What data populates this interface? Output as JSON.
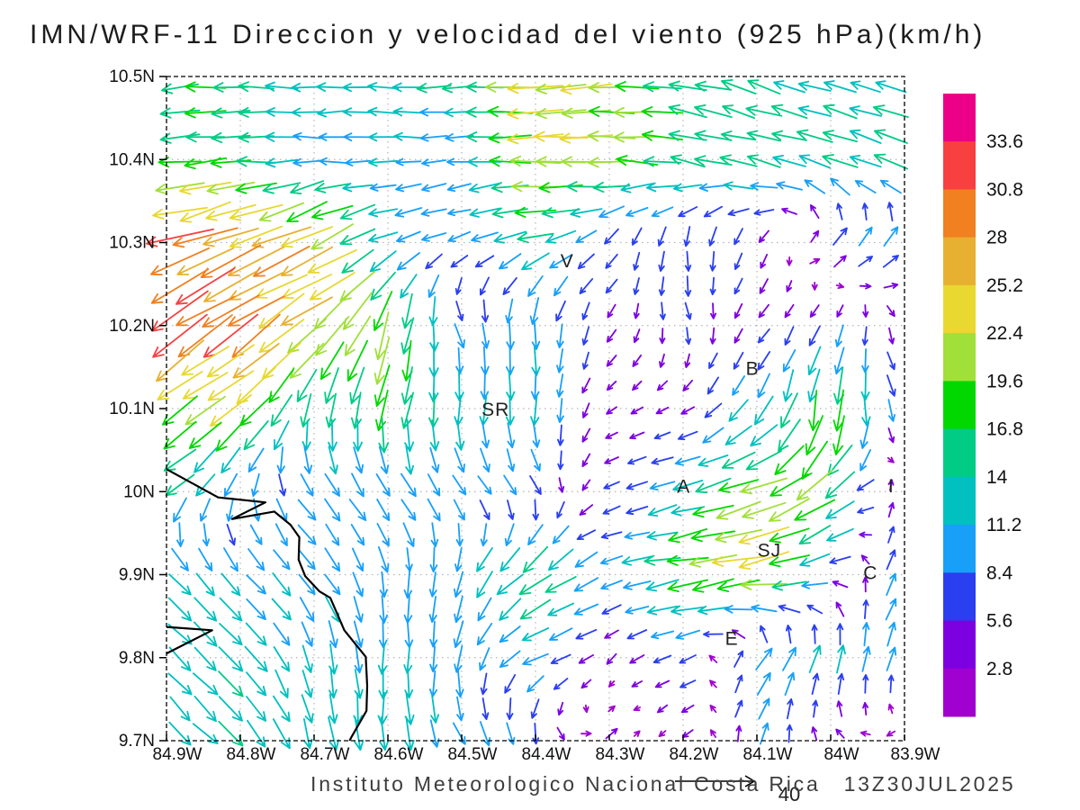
{
  "title": "IMN/WRF-11 Direccion y velocidad del viento (925 hPa)(km/h)",
  "footer": {
    "institution": "Instituto Meteorologico Nacional Costa Rica",
    "datetime": "13Z30JUL2025"
  },
  "reference_arrow": {
    "value": 40,
    "label": "40"
  },
  "chart_data": {
    "type": "vector_field",
    "title": "IMN/WRF-11 Direccion y velocidad del viento (925 hPa)(km/h)",
    "speed_units": "km/h",
    "pressure_level": "925 hPa",
    "grid": true,
    "x_axis": {
      "labels": [
        "84.9W",
        "84.8W",
        "84.7W",
        "84.6W",
        "84.5W",
        "84.4W",
        "84.3W",
        "84.2W",
        "84.1W",
        "84W",
        "83.9W"
      ],
      "ticks_deg_west": [
        84.9,
        84.8,
        84.7,
        84.6,
        84.5,
        84.4,
        84.3,
        84.2,
        84.1,
        84.0,
        83.9
      ]
    },
    "y_axis": {
      "labels": [
        "10.5N",
        "10.4N",
        "10.3N",
        "10.2N",
        "10.1N",
        "10N",
        "9.9N",
        "9.8N",
        "9.7N"
      ],
      "ticks_deg_north": [
        10.5,
        10.4,
        10.3,
        10.2,
        10.1,
        10.0,
        9.9,
        9.8,
        9.7
      ]
    },
    "colorbar": {
      "levels": [
        2.8,
        5.6,
        8.4,
        11.2,
        14,
        16.8,
        19.6,
        22.4,
        25.2,
        28,
        30.8,
        33.6
      ],
      "labels": [
        "33.6",
        "30.8",
        "28",
        "25.2",
        "22.4",
        "19.6",
        "16.8",
        "14",
        "11.2",
        "8.4",
        "5.6",
        "2.8"
      ],
      "colors_low_to_high": [
        "#a000d0",
        "#7d00e0",
        "#2a3ff0",
        "#18a0f8",
        "#00c0c0",
        "#00cc85",
        "#00d800",
        "#a0e038",
        "#e8d830",
        "#e8b030",
        "#f08020",
        "#f84040",
        "#ec0088"
      ]
    },
    "stations": [
      {
        "label": "V",
        "lon_w": 84.357,
        "lat_n": 10.278
      },
      {
        "label": "SR",
        "lon_w": 84.454,
        "lat_n": 10.099
      },
      {
        "label": "B",
        "lon_w": 84.106,
        "lat_n": 10.148
      },
      {
        "label": "A",
        "lon_w": 84.199,
        "lat_n": 10.006
      },
      {
        "label": "I",
        "lon_w": 83.918,
        "lat_n": 10.007
      },
      {
        "label": "SJ",
        "lon_w": 84.083,
        "lat_n": 9.929
      },
      {
        "label": "C",
        "lon_w": 83.946,
        "lat_n": 9.902
      },
      {
        "label": "E",
        "lon_w": 84.134,
        "lat_n": 9.823
      }
    ],
    "coastline": [
      [
        [
          84.9,
          10.027
        ],
        [
          84.83,
          9.993
        ],
        [
          84.766,
          9.987
        ],
        [
          84.811,
          9.967
        ],
        [
          84.754,
          9.976
        ],
        [
          84.732,
          9.96
        ],
        [
          84.72,
          9.945
        ],
        [
          84.721,
          9.918
        ],
        [
          84.712,
          9.898
        ],
        [
          84.693,
          9.88
        ],
        [
          84.678,
          9.872
        ],
        [
          84.659,
          9.833
        ],
        [
          84.63,
          9.801
        ],
        [
          84.628,
          9.766
        ],
        [
          84.629,
          9.736
        ],
        [
          84.649,
          9.705
        ],
        [
          84.652,
          9.7
        ]
      ],
      [
        [
          84.9,
          9.837
        ],
        [
          84.838,
          9.833
        ],
        [
          84.9,
          9.805
        ]
      ]
    ],
    "wind_grid": {
      "lons_deg_west": [
        84.9,
        84.8,
        84.7,
        84.6,
        84.5,
        84.4,
        84.3,
        84.2,
        84.1,
        84.0,
        83.9
      ],
      "lats_deg_north": [
        10.5,
        10.4,
        10.3,
        10.2,
        10.1,
        10.0,
        9.9,
        9.8,
        9.7
      ],
      "u_kmh": [
        [
          -17,
          -15,
          -13,
          -13,
          -14,
          -23,
          -20,
          -15,
          -14,
          -13,
          -13
        ],
        [
          -19,
          -17,
          -9,
          -11,
          -9,
          -24,
          -21,
          -16,
          -15,
          -14,
          -14
        ],
        [
          -30,
          -26,
          -24,
          -10,
          -8,
          -14,
          -4,
          0,
          -3,
          6,
          7
        ],
        [
          -26,
          -24,
          -20,
          -6,
          4,
          0,
          -3,
          2,
          -3,
          -4,
          3
        ],
        [
          -16,
          -17,
          -2,
          -3,
          -2,
          0,
          -3,
          -4,
          -7,
          -2,
          3
        ],
        [
          -11,
          -3,
          6,
          6,
          6,
          4,
          -5,
          -12,
          -20,
          -16,
          4
        ],
        [
          9,
          8,
          7,
          2,
          -4,
          -14,
          -9,
          -18,
          -23,
          -8,
          7
        ],
        [
          9,
          9,
          3,
          0,
          -2,
          -10,
          -3,
          -7,
          6,
          3,
          2
        ],
        [
          9,
          10,
          3,
          0,
          5,
          2,
          4,
          -3,
          2,
          -3,
          -2
        ]
      ],
      "v_kmh": [
        [
          -1,
          0,
          0,
          0,
          0,
          0,
          -1,
          3,
          4,
          4,
          4
        ],
        [
          -2,
          -1,
          0,
          0,
          -1,
          0,
          0,
          3,
          4,
          5,
          5
        ],
        [
          -8,
          -10,
          -12,
          -4,
          -3,
          -4,
          -5,
          -8,
          -6,
          6,
          7
        ],
        [
          -18,
          -17,
          -14,
          -20,
          -8,
          -11,
          -4,
          -6,
          -4,
          -6,
          -5
        ],
        [
          -12,
          -13,
          -14,
          -18,
          -13,
          -12,
          -2,
          -2,
          -11,
          -20,
          -6
        ],
        [
          -9,
          -8,
          -8,
          -8,
          -7,
          -6,
          -2,
          -3,
          -6,
          -14,
          8
        ],
        [
          -9,
          -8,
          -8,
          -10,
          -10,
          -10,
          -3,
          -3,
          -4,
          -1,
          9
        ],
        [
          -9,
          -10,
          -11,
          -12,
          -10,
          -4,
          -3,
          -3,
          9,
          11,
          9
        ],
        [
          -9,
          -10,
          -13,
          -15,
          -9,
          -8,
          4,
          -3,
          8,
          2,
          -3
        ]
      ]
    }
  }
}
